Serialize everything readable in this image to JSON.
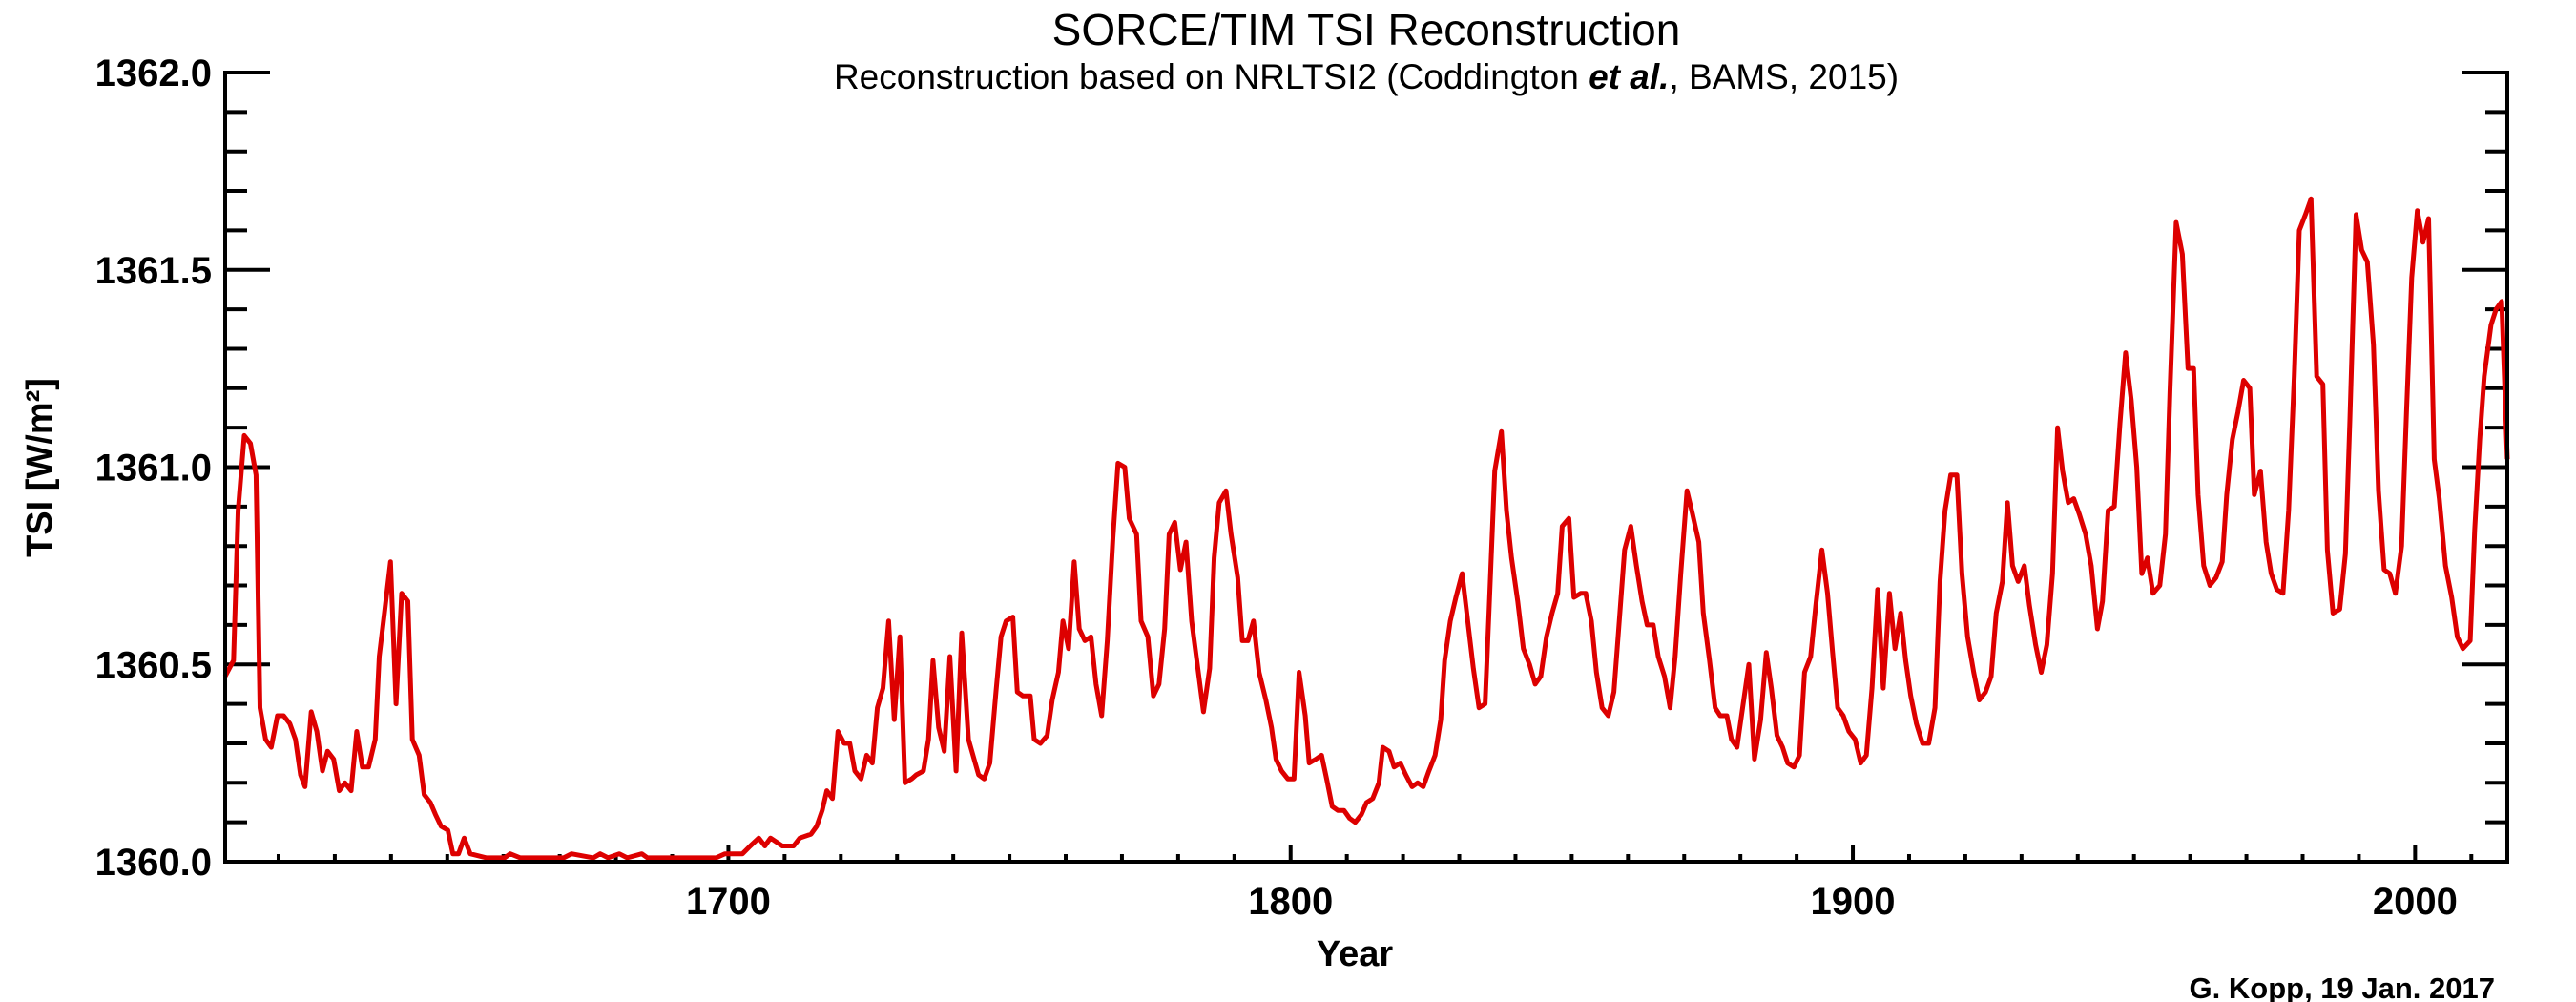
{
  "chart_data": {
    "type": "line",
    "title": "SORCE/TIM TSI Reconstruction",
    "subtitle": {
      "before": "Reconstruction based on NRLTSI2 (Coddington ",
      "emphasis": "et al.",
      "after": ", BAMS, 2015)"
    },
    "xlabel": "Year",
    "ylabel": "TSI [W/m²]",
    "credit": "G. Kopp, 19 Jan. 2017",
    "xlim": [
      1610.5,
      2016.4
    ],
    "ylim": [
      1360.0,
      1362.0
    ],
    "x_ticks": [
      1700,
      1800,
      1900,
      2000
    ],
    "x_tick_labels": [
      "1700",
      "1800",
      "1900",
      "2000"
    ],
    "x_minor_step": 10,
    "y_ticks": [
      1360.0,
      1360.5,
      1361.0,
      1361.5,
      1362.0
    ],
    "y_tick_labels": [
      "1360.0",
      "1360.5",
      "1361.0",
      "1361.5",
      "1362.0"
    ],
    "y_minor_step": 0.1,
    "grid": false,
    "series_color": "#dd0000",
    "series": [
      {
        "x": [
          1610.5,
          1612.0,
          1612.8,
          1613.9,
          1615.0,
          1616.0,
          1616.7,
          1617.7,
          1618.7,
          1619.8,
          1620.9,
          1622.0,
          1623.0,
          1623.9,
          1624.7,
          1625.8,
          1626.8,
          1627.8,
          1628.7,
          1629.8,
          1630.8,
          1631.8,
          1632.9,
          1633.9,
          1634.9,
          1636.0,
          1637.2,
          1637.9,
          1638.9,
          1639.9,
          1640.9,
          1641.9,
          1643.0,
          1643.8,
          1645.0,
          1645.9,
          1647.0,
          1647.9,
          1648.9,
          1650.1,
          1651.0,
          1652.0,
          1653.0,
          1654.1,
          1657.0,
          1658.2,
          1660.2,
          1661.2,
          1663.0,
          1670.7,
          1672.1,
          1676.0,
          1677.2,
          1678.6,
          1680.6,
          1682.0,
          1684.6,
          1685.6,
          1690.4,
          1696.0,
          1697.8,
          1699.4,
          1701.4,
          1702.5,
          1703.9,
          1705.4,
          1706.5,
          1707.5,
          1709.6,
          1711.6,
          1712.7,
          1714.7,
          1715.7,
          1716.7,
          1717.5,
          1718.5,
          1719.5,
          1720.6,
          1721.6,
          1722.5,
          1723.6,
          1724.6,
          1725.6,
          1726.5,
          1727.5,
          1728.5,
          1729.5,
          1730.5,
          1731.4,
          1732.6,
          1733.4,
          1734.7,
          1735.6,
          1736.4,
          1737.4,
          1738.4,
          1739.4,
          1740.5,
          1741.5,
          1742.7,
          1744.5,
          1745.5,
          1746.5,
          1747.6,
          1748.5,
          1749.4,
          1750.6,
          1751.4,
          1752.4,
          1753.7,
          1754.4,
          1755.5,
          1756.7,
          1757.6,
          1758.7,
          1759.5,
          1760.5,
          1761.5,
          1762.4,
          1763.4,
          1764.5,
          1765.4,
          1766.4,
          1767.4,
          1768.4,
          1769.3,
          1770.5,
          1771.3,
          1772.6,
          1773.4,
          1774.6,
          1775.6,
          1776.6,
          1777.6,
          1778.4,
          1779.4,
          1780.4,
          1781.4,
          1782.4,
          1783.5,
          1784.5,
          1785.6,
          1786.4,
          1787.3,
          1788.5,
          1789.4,
          1790.6,
          1791.4,
          1792.4,
          1793.4,
          1794.4,
          1795.6,
          1796.6,
          1797.4,
          1798.4,
          1799.5,
          1800.6,
          1801.5,
          1802.6,
          1803.3,
          1804.5,
          1805.5,
          1806.4,
          1807.4,
          1808.4,
          1809.5,
          1810.5,
          1811.5,
          1812.6,
          1813.5,
          1814.6,
          1815.7,
          1816.4,
          1817.5,
          1818.4,
          1819.5,
          1820.5,
          1821.6,
          1822.6,
          1823.6,
          1824.6,
          1825.7,
          1826.7,
          1827.4,
          1828.4,
          1829.4,
          1830.5,
          1831.5,
          1832.5,
          1833.5,
          1834.6,
          1835.3,
          1836.3,
          1837.5,
          1838.4,
          1839.3,
          1840.4,
          1841.4,
          1842.5,
          1843.5,
          1844.5,
          1845.5,
          1846.5,
          1847.5,
          1848.3,
          1849.5,
          1850.4,
          1851.6,
          1852.5,
          1853.5,
          1854.4,
          1855.4,
          1856.5,
          1857.5,
          1858.3,
          1859.4,
          1860.5,
          1861.5,
          1862.5,
          1863.4,
          1864.5,
          1865.4,
          1866.5,
          1867.5,
          1868.4,
          1869.4,
          1870.5,
          1871.5,
          1872.6,
          1873.4,
          1874.5,
          1875.5,
          1876.4,
          1877.6,
          1878.4,
          1879.4,
          1880.4,
          1881.5,
          1882.5,
          1883.6,
          1884.6,
          1885.5,
          1886.5,
          1887.5,
          1888.4,
          1889.5,
          1890.5,
          1891.4,
          1892.5,
          1893.4,
          1894.5,
          1895.5,
          1896.4,
          1897.3,
          1898.3,
          1899.3,
          1900.4,
          1901.4,
          1902.4,
          1903.4,
          1904.4,
          1905.4,
          1906.5,
          1907.5,
          1908.5,
          1909.4,
          1910.3,
          1911.3,
          1912.4,
          1913.5,
          1914.6,
          1915.5,
          1916.4,
          1917.4,
          1918.5,
          1919.4,
          1920.4,
          1921.5,
          1922.5,
          1923.6,
          1924.6,
          1925.5,
          1926.6,
          1927.5,
          1928.4,
          1929.4,
          1930.5,
          1931.4,
          1932.5,
          1933.5,
          1934.5,
          1935.5,
          1936.4,
          1937.3,
          1938.3,
          1939.3,
          1940.3,
          1941.4,
          1942.4,
          1943.5,
          1944.4,
          1945.4,
          1946.5,
          1947.5,
          1948.5,
          1949.5,
          1950.5,
          1951.4,
          1952.4,
          1953.4,
          1954.6,
          1955.6,
          1956.4,
          1957.5,
          1958.6,
          1959.6,
          1960.6,
          1961.4,
          1962.4,
          1963.5,
          1964.6,
          1965.7,
          1966.5,
          1967.5,
          1968.5,
          1969.5,
          1970.6,
          1971.4,
          1972.5,
          1973.5,
          1974.4,
          1975.4,
          1976.5,
          1977.5,
          1978.5,
          1979.4,
          1980.5,
          1981.5,
          1982.5,
          1983.6,
          1984.4,
          1985.4,
          1986.6,
          1987.6,
          1988.4,
          1989.5,
          1990.5,
          1991.5,
          1992.6,
          1993.5,
          1994.5,
          1995.5,
          1996.5,
          1997.6,
          1998.5,
          1999.4,
          2000.4,
          2001.4,
          2002.4,
          2003.4,
          2004.3,
          2005.4,
          2006.5,
          2007.5,
          2008.5,
          2009.8,
          2010.6,
          2011.5,
          2012.3,
          2013.5,
          2014.4,
          2015.4,
          2016.4
        ],
        "y": [
          1360.47,
          1360.51,
          1360.89,
          1361.08,
          1361.06,
          1360.98,
          1360.39,
          1360.31,
          1360.29,
          1360.37,
          1360.37,
          1360.35,
          1360.31,
          1360.22,
          1360.19,
          1360.38,
          1360.33,
          1360.23,
          1360.28,
          1360.26,
          1360.18,
          1360.2,
          1360.18,
          1360.33,
          1360.24,
          1360.24,
          1360.31,
          1360.52,
          1360.64,
          1360.76,
          1360.4,
          1360.68,
          1360.66,
          1360.31,
          1360.27,
          1360.17,
          1360.15,
          1360.12,
          1360.09,
          1360.08,
          1360.02,
          1360.02,
          1360.06,
          1360.02,
          1360.01,
          1360.01,
          1360.01,
          1360.02,
          1360.01,
          1360.01,
          1360.02,
          1360.01,
          1360.02,
          1360.01,
          1360.02,
          1360.01,
          1360.02,
          1360.01,
          1360.01,
          1360.01,
          1360.01,
          1360.02,
          1360.02,
          1360.02,
          1360.04,
          1360.06,
          1360.04,
          1360.06,
          1360.04,
          1360.04,
          1360.06,
          1360.07,
          1360.09,
          1360.13,
          1360.18,
          1360.16,
          1360.33,
          1360.3,
          1360.3,
          1360.23,
          1360.21,
          1360.27,
          1360.25,
          1360.39,
          1360.44,
          1360.61,
          1360.36,
          1360.57,
          1360.2,
          1360.21,
          1360.22,
          1360.23,
          1360.31,
          1360.51,
          1360.34,
          1360.28,
          1360.52,
          1360.23,
          1360.58,
          1360.31,
          1360.22,
          1360.21,
          1360.25,
          1360.43,
          1360.57,
          1360.61,
          1360.62,
          1360.43,
          1360.42,
          1360.42,
          1360.31,
          1360.3,
          1360.32,
          1360.41,
          1360.48,
          1360.61,
          1360.54,
          1360.76,
          1360.59,
          1360.56,
          1360.57,
          1360.45,
          1360.37,
          1360.56,
          1360.82,
          1361.01,
          1361.0,
          1360.87,
          1360.83,
          1360.61,
          1360.57,
          1360.42,
          1360.45,
          1360.59,
          1360.83,
          1360.86,
          1360.74,
          1360.81,
          1360.61,
          1360.49,
          1360.38,
          1360.49,
          1360.77,
          1360.91,
          1360.94,
          1360.83,
          1360.72,
          1360.56,
          1360.56,
          1360.61,
          1360.48,
          1360.41,
          1360.34,
          1360.26,
          1360.23,
          1360.21,
          1360.21,
          1360.48,
          1360.37,
          1360.25,
          1360.26,
          1360.27,
          1360.21,
          1360.14,
          1360.13,
          1360.13,
          1360.11,
          1360.1,
          1360.12,
          1360.15,
          1360.16,
          1360.2,
          1360.29,
          1360.28,
          1360.24,
          1360.25,
          1360.22,
          1360.19,
          1360.2,
          1360.19,
          1360.23,
          1360.27,
          1360.36,
          1360.51,
          1360.61,
          1360.67,
          1360.73,
          1360.61,
          1360.49,
          1360.39,
          1360.4,
          1360.64,
          1360.99,
          1361.09,
          1360.89,
          1360.77,
          1360.66,
          1360.54,
          1360.5,
          1360.45,
          1360.47,
          1360.57,
          1360.63,
          1360.68,
          1360.85,
          1360.87,
          1360.67,
          1360.68,
          1360.68,
          1360.61,
          1360.48,
          1360.39,
          1360.37,
          1360.43,
          1360.58,
          1360.79,
          1360.85,
          1360.75,
          1360.66,
          1360.6,
          1360.6,
          1360.52,
          1360.47,
          1360.39,
          1360.52,
          1360.73,
          1360.94,
          1360.88,
          1360.81,
          1360.63,
          1360.51,
          1360.39,
          1360.37,
          1360.37,
          1360.31,
          1360.29,
          1360.39,
          1360.5,
          1360.26,
          1360.36,
          1360.53,
          1360.44,
          1360.32,
          1360.29,
          1360.25,
          1360.24,
          1360.27,
          1360.48,
          1360.52,
          1360.65,
          1360.79,
          1360.68,
          1360.53,
          1360.39,
          1360.37,
          1360.33,
          1360.31,
          1360.25,
          1360.27,
          1360.44,
          1360.69,
          1360.44,
          1360.68,
          1360.54,
          1360.63,
          1360.51,
          1360.42,
          1360.35,
          1360.3,
          1360.3,
          1360.39,
          1360.71,
          1360.89,
          1360.98,
          1360.98,
          1360.73,
          1360.57,
          1360.48,
          1360.41,
          1360.43,
          1360.47,
          1360.63,
          1360.71,
          1360.91,
          1360.75,
          1360.71,
          1360.75,
          1360.65,
          1360.55,
          1360.48,
          1360.55,
          1360.73,
          1361.1,
          1360.99,
          1360.91,
          1360.92,
          1360.88,
          1360.83,
          1360.75,
          1360.59,
          1360.66,
          1360.89,
          1360.9,
          1361.11,
          1361.29,
          1361.17,
          1361.0,
          1360.73,
          1360.77,
          1360.68,
          1360.7,
          1360.83,
          1361.19,
          1361.62,
          1361.54,
          1361.25,
          1361.25,
          1360.93,
          1360.75,
          1360.7,
          1360.72,
          1360.76,
          1360.93,
          1361.07,
          1361.14,
          1361.22,
          1361.2,
          1360.93,
          1360.99,
          1360.81,
          1360.73,
          1360.69,
          1360.68,
          1360.89,
          1361.23,
          1361.6,
          1361.64,
          1361.68,
          1361.23,
          1361.21,
          1360.79,
          1360.63,
          1360.64,
          1360.78,
          1361.12,
          1361.64,
          1361.55,
          1361.52,
          1361.31,
          1360.94,
          1360.74,
          1360.73,
          1360.68,
          1360.8,
          1361.15,
          1361.48,
          1361.65,
          1361.57,
          1361.63,
          1361.02,
          1360.92,
          1360.75,
          1360.67,
          1360.57,
          1360.54,
          1360.56,
          1360.84,
          1361.07,
          1361.23,
          1361.36,
          1361.4,
          1361.42,
          1361.02
        ]
      }
    ]
  }
}
